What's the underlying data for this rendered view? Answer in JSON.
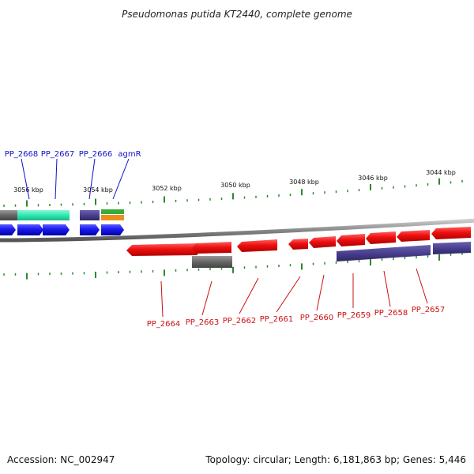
{
  "title": "Pseudomonas putida KT2440, complete genome",
  "footer": {
    "accession": "Accession: NC_002947",
    "topology": "Topology: circular; Length: 6,181,863 bp; Genes: 5,446"
  },
  "colors": {
    "forward_gene": "#1a1aee",
    "reverse_gene": "#ee1010",
    "cds_purple": "#4a3f90",
    "grey_feature": "#666666",
    "teal_feature": "#30e8b0",
    "green_feature": "#3aaa3a",
    "orange_feature": "#e8901a",
    "tick_green": "#2a8a2a",
    "backbone": "#888888"
  },
  "scale_labels": [
    "3056 kbp",
    "3054 kbp",
    "3052 kbp",
    "3050 kbp",
    "3048 kbp",
    "3046 kbp",
    "3044 kbp"
  ],
  "top_genes": [
    "PP_2668",
    "PP_2667",
    "PP_2666",
    "agmR"
  ],
  "bottom_genes": [
    "PP_2664",
    "PP_2663",
    "PP_2662",
    "PP_2661",
    "PP_2660",
    "PP_2659",
    "PP_2658",
    "PP_2657"
  ]
}
